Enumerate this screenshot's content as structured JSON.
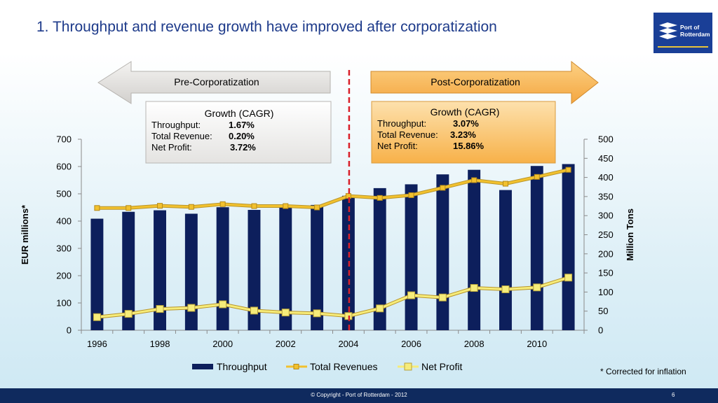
{
  "slide": {
    "title_num": "1.",
    "title": "Throughput and revenue growth have improved  after corporatization",
    "logo_line1": "Port of",
    "logo_line2": "Rotterdam",
    "footnote": "* Corrected for inflation",
    "copyright": "© Copyright - Port of Rotterdam - 2012",
    "page_number": "6"
  },
  "phases": {
    "pre": {
      "label": "Pre-Corporatization",
      "heading": "Growth (CAGR)",
      "rows": [
        {
          "label": "Throughput:",
          "value": "1.67%"
        },
        {
          "label": "Total Revenue:",
          "value": "0.20%"
        },
        {
          "label": "Net Profit:",
          "value": "3.72%"
        }
      ]
    },
    "post": {
      "label": "Post-Corporatization",
      "heading": "Growth (CAGR)",
      "rows": [
        {
          "label": "Throughput:",
          "value": "3.07%"
        },
        {
          "label": "Total Revenue:",
          "value": "3.23%"
        },
        {
          "label": "Net Profit:",
          "value": "15.86%"
        }
      ]
    }
  },
  "colors": {
    "bars": "#0d1f5c",
    "revenue": "#f2c12e",
    "profit": "#f6ec7a",
    "divider": "#d9202a",
    "pre_arrow": "#e7e6e4",
    "post_arrow": "#f8b64a"
  },
  "chart_data": {
    "type": "bar+line",
    "categories": [
      "1996",
      "1997",
      "1998",
      "1999",
      "2000",
      "2001",
      "2002",
      "2003",
      "2004",
      "2005",
      "2006",
      "2007",
      "2008",
      "2009",
      "2010",
      "2011"
    ],
    "x_tick_labels": [
      "1996",
      "1998",
      "2000",
      "2002",
      "2004",
      "2006",
      "2008",
      "2010"
    ],
    "series": [
      {
        "name": "Throughput",
        "type": "bar",
        "axis": "right",
        "values": [
          292,
          310,
          314,
          305,
          322,
          315,
          322,
          328,
          352,
          372,
          382,
          408,
          420,
          367,
          430,
          435
        ]
      },
      {
        "name": "Total Revenues",
        "type": "line",
        "axis": "left",
        "values": [
          448,
          448,
          456,
          452,
          462,
          455,
          455,
          450,
          492,
          485,
          495,
          522,
          550,
          537,
          562,
          588
        ]
      },
      {
        "name": "Net Profit",
        "type": "line",
        "axis": "left",
        "values": [
          48,
          60,
          78,
          82,
          95,
          72,
          65,
          62,
          52,
          80,
          128,
          120,
          155,
          150,
          157,
          193
        ]
      }
    ],
    "ylabel_left": "EUR millions*",
    "ylabel_right": "Million Tons",
    "ylim_left": [
      0,
      700
    ],
    "yticks_left": [
      0,
      100,
      200,
      300,
      400,
      500,
      600,
      700
    ],
    "ylim_right": [
      0,
      500
    ],
    "yticks_right": [
      0,
      50,
      100,
      150,
      200,
      250,
      300,
      350,
      400,
      450,
      500
    ],
    "divider_category": "2004",
    "legend_position": "bottom",
    "grid": false
  }
}
